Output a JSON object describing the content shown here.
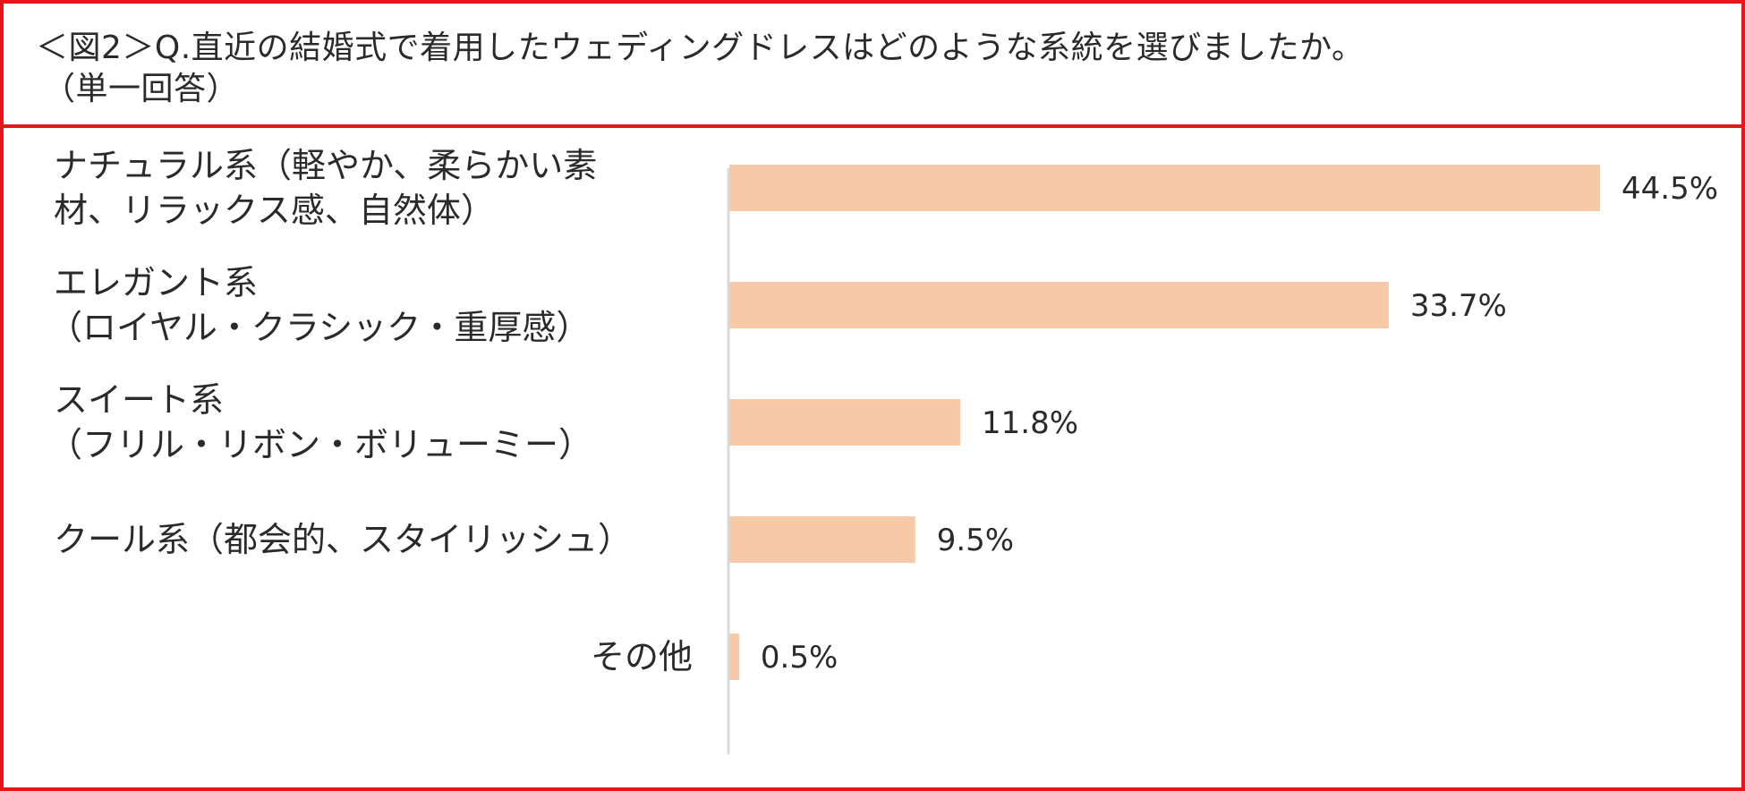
{
  "title": {
    "line1": "＜図2＞Q.直近の結婚式で着用したウェディングドレスはどのような系統を選びましたか。",
    "line2": "（単一回答）"
  },
  "colors": {
    "border": "#e8161a",
    "bar": "#f7c9a7",
    "axis": "#d9d9d9"
  },
  "chart_data": {
    "type": "bar",
    "orientation": "horizontal",
    "categories": [
      [
        "ナチュラル系（軽やか、柔らかい素",
        "材、リラックス感、自然体）"
      ],
      [
        "エレガント系",
        "（ロイヤル・クラシック・重厚感）"
      ],
      [
        "スイート系",
        "（フリル・リボン・ボリューミー）"
      ],
      [
        "クール系（都会的、スタイリッシュ）"
      ],
      [
        "その他"
      ]
    ],
    "values": [
      44.5,
      33.7,
      11.8,
      9.5,
      0.5
    ],
    "value_labels": [
      "44.5%",
      "33.7%",
      "11.8%",
      "9.5%",
      "0.5%"
    ],
    "xlim": [
      0,
      44.5
    ],
    "grid": false,
    "legend": "none"
  }
}
